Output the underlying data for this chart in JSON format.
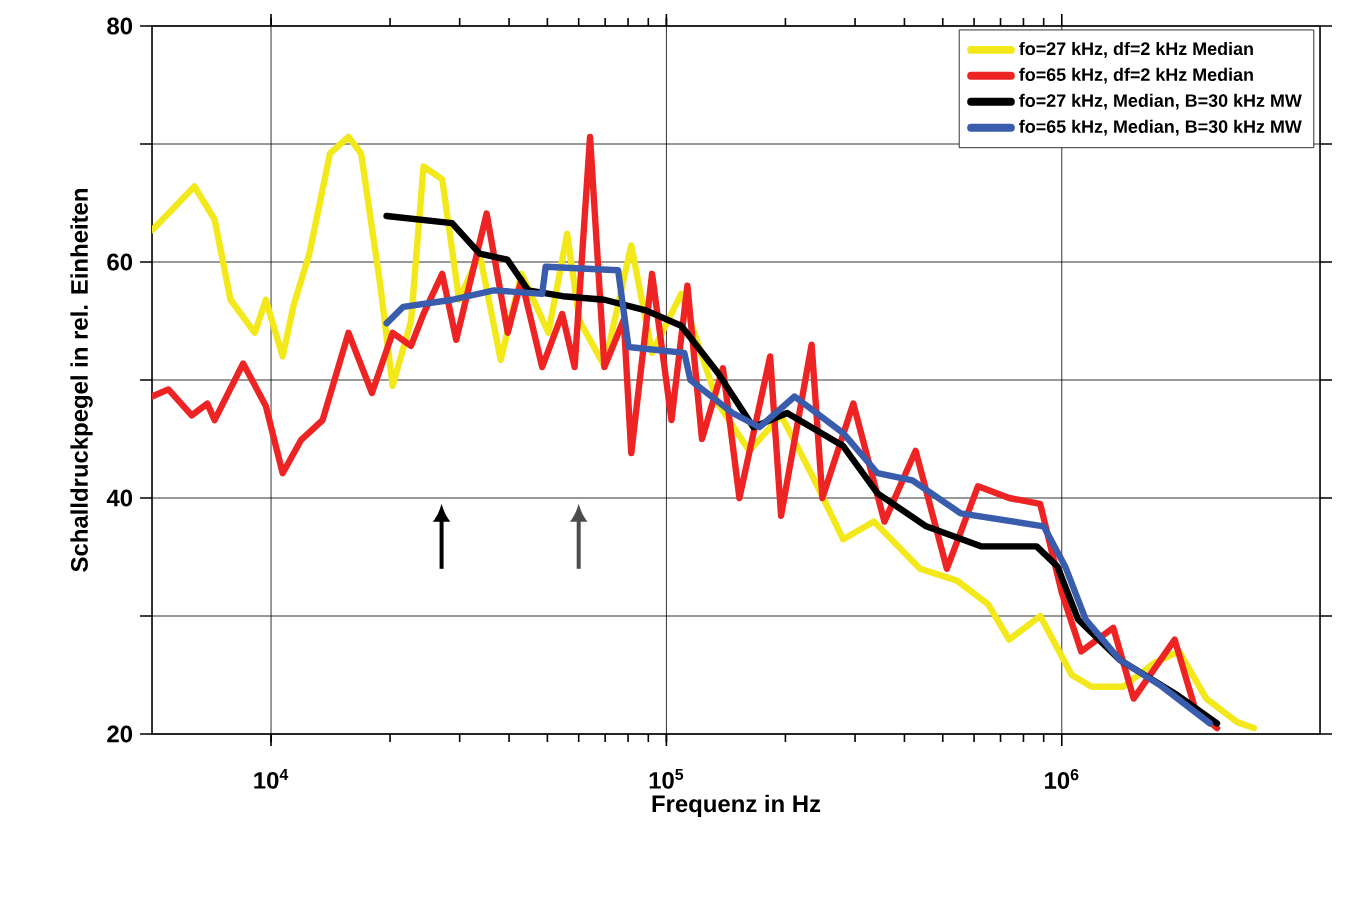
{
  "chart_data": {
    "type": "line",
    "xlabel": "Frequenz in Hz",
    "ylabel": "Schalldruckpegel in rel. Einheiten",
    "log": "x",
    "grid": true,
    "legend": "top right",
    "marker": "none",
    "line_style": "solid",
    "xlim": [
      5000,
      4500000
    ],
    "ylim": [
      20,
      80
    ],
    "xticks": [
      {
        "value": 10000,
        "label": "10$^{4}$"
      },
      {
        "value": 100000,
        "label": "10$^{5}$"
      },
      {
        "value": 1000000,
        "label": "10$^{6}$"
      }
    ],
    "yticks": [
      20,
      {
        "value": 30,
        "label": null
      },
      40,
      {
        "value": 50,
        "label": null
      },
      60,
      {
        "value": 70,
        "label": null
      },
      80
    ],
    "series": [
      {
        "name": "fo=27 kHz, df=2 kHz Median",
        "color": "#f2e81a",
        "x": [
          5000,
          5500,
          6400,
          7200,
          7900,
          9100,
          9700,
          10700,
          11400,
          12500,
          14100,
          15700,
          16900,
          18900,
          20300,
          22600,
          24300,
          27100,
          29900,
          33700,
          38100,
          43000,
          50300,
          56100,
          60300,
          69700,
          81500,
          92000,
          109000,
          135000,
          162000,
          195000,
          233000,
          280000,
          335000,
          438000,
          543000,
          651000,
          736000,
          882000,
          1060000,
          1190000,
          1430000,
          1710000,
          1980000,
          2320000,
          2780000,
          3060000
        ],
        "values": [
          62.7,
          64.1,
          66.4,
          63.6,
          56.8,
          54,
          56.8,
          52,
          56.3,
          60.7,
          69.2,
          70.6,
          69.2,
          58,
          49.5,
          55,
          68.1,
          67,
          56.8,
          60.7,
          51.7,
          59,
          54,
          62.4,
          55,
          51.2,
          61.4,
          52.3,
          57.3,
          48,
          44,
          47,
          42,
          36.5,
          38,
          34,
          33,
          31,
          28,
          30,
          25,
          24,
          24,
          26,
          27,
          23,
          21,
          20.5
        ]
      },
      {
        "name": "fo=65 kHz, df=2 kHz Median",
        "color": "#ee2424",
        "x": [
          5000,
          5500,
          6300,
          6900,
          7200,
          8500,
          9700,
          10700,
          11900,
          13500,
          15700,
          18000,
          20300,
          22600,
          24300,
          27100,
          29400,
          35100,
          39700,
          43000,
          48500,
          54500,
          58600,
          64100,
          69700,
          78000,
          81500,
          92000,
          103000,
          113000,
          123000,
          139000,
          153000,
          183000,
          195000,
          233000,
          248000,
          297000,
          356000,
          427000,
          512000,
          614000,
          736000,
          882000,
          1000000,
          1120000,
          1350000,
          1520000,
          1930000,
          2180000,
          2470000
        ],
        "values": [
          48.6,
          49.2,
          47,
          48,
          46.6,
          51.4,
          47.8,
          42.1,
          44.9,
          46.6,
          54,
          48.9,
          54,
          52.9,
          55.6,
          59,
          53.4,
          64.1,
          54,
          58.5,
          51.1,
          55.6,
          51.1,
          70.6,
          51.1,
          55.1,
          43.8,
          59,
          46.6,
          58,
          45,
          51,
          40,
          52,
          38.5,
          53,
          40,
          48,
          38,
          44,
          34,
          41,
          40,
          39.5,
          32,
          27,
          29,
          23,
          28,
          22,
          20.5
        ]
      },
      {
        "name": "fo=27 kHz, Median, B=30 kHz MW",
        "color": "#000000",
        "x": [
          19600,
          28700,
          33700,
          39600,
          44700,
          54700,
          69700,
          88700,
          109000,
          135000,
          166000,
          202000,
          280000,
          342000,
          454000,
          627000,
          864000,
          975000,
          1100000,
          1400000,
          1940000,
          2470000
        ],
        "values": [
          63.9,
          63.3,
          60.7,
          60.2,
          57.6,
          57.1,
          56.8,
          55.9,
          54.6,
          50.6,
          46,
          47.2,
          44.4,
          40.4,
          37.6,
          35.9,
          35.9,
          34.2,
          29.7,
          26.3,
          23.4,
          20.9
        ]
      },
      {
        "name": "fo=65 kHz, Median, B=30 kHz MW",
        "color": "#3a5cad",
        "x": [
          19600,
          21600,
          28700,
          36600,
          48500,
          49500,
          75500,
          80200,
          111000,
          115000,
          147000,
          172000,
          211000,
          280000,
          342000,
          419000,
          555000,
          900000,
          1020000,
          1150000,
          1400000,
          1780000,
          2370000
        ],
        "values": [
          54.8,
          56.2,
          56.8,
          57.6,
          57.3,
          59.6,
          59.3,
          52.8,
          52.3,
          50,
          47.2,
          46,
          48.6,
          45.5,
          42.1,
          41.5,
          38.7,
          37.6,
          34.2,
          29.7,
          26.3,
          24.1,
          20.9
        ]
      }
    ]
  }
}
